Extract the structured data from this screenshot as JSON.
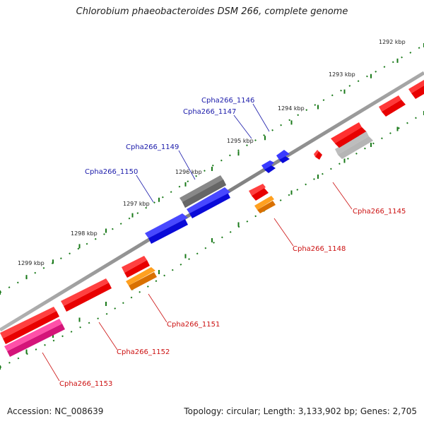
{
  "title": "Chlorobium phaeobacteroides DSM 266, complete genome",
  "footer": {
    "accession": "Accession: NC_008639",
    "summary": "Topology: circular; Length: 3,133,902 bp; Genes: 2,705"
  },
  "colors": {
    "backbone": "#8a8a8a",
    "tick": "#1a7a1a",
    "label_blue": "#1a1aaa",
    "label_red": "#cc1111",
    "gene_red": "#e80000",
    "gene_blue": "#0a0ad8",
    "gene_dark_gray": "#666666",
    "gene_light_gray": "#bdbdbd",
    "gene_orange": "#ff8c00",
    "gene_pink": "#ee1f8c"
  },
  "scale_ticks": [
    "1292 kbp",
    "1293 kbp",
    "1294 kbp",
    "1295 kbp",
    "1296 kbp",
    "1297 kbp",
    "1298 kbp",
    "1299 kbp"
  ],
  "gene_labels": [
    "Cpha266_1145",
    "Cpha266_1146",
    "Cpha266_1147",
    "Cpha266_1148",
    "Cpha266_1149",
    "Cpha266_1150",
    "Cpha266_1151",
    "Cpha266_1152",
    "Cpha266_1153"
  ]
}
